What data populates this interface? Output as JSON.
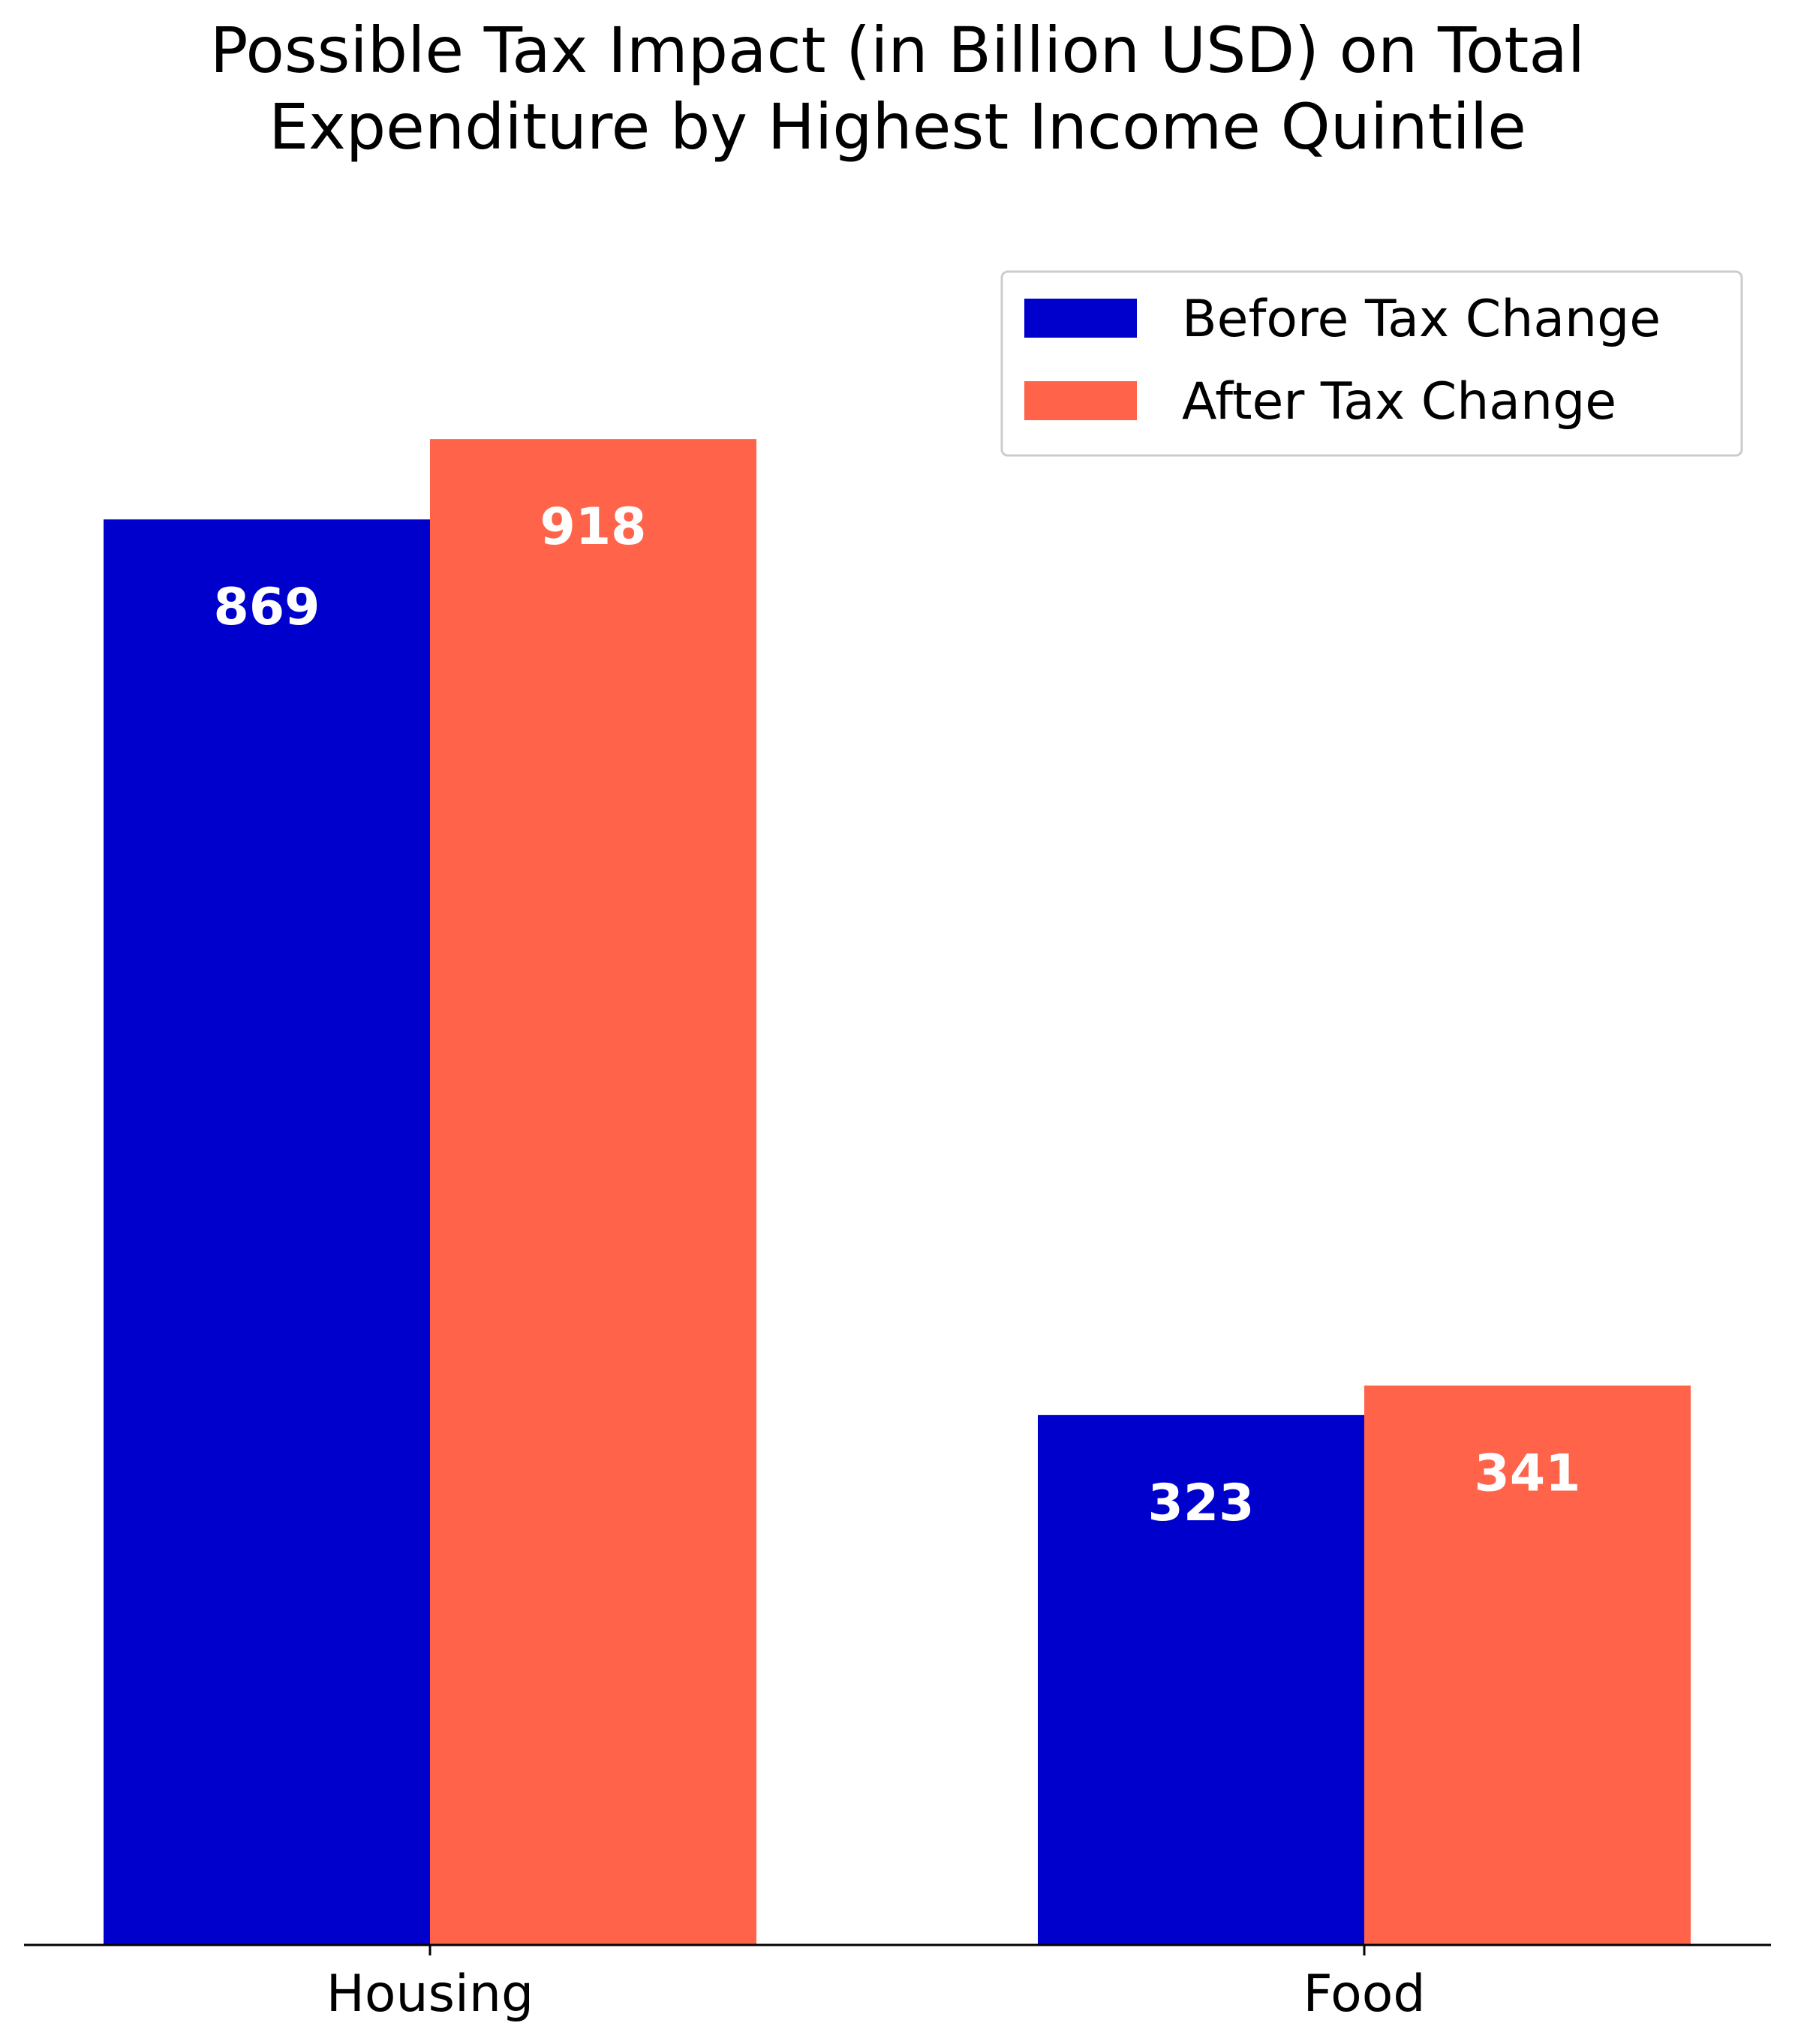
{
  "chart_data": {
    "type": "bar",
    "title": "Possible Tax Impact (in Billion USD) on Total Expenditure by Highest Income Quintile",
    "title_lines": [
      "Possible Tax Impact (in Billion USD) on Total",
      "Expenditure by Highest Income Quintile"
    ],
    "xlabel": "",
    "ylabel": "",
    "categories": [
      "Housing",
      "Food"
    ],
    "series": [
      {
        "name": "Before Tax Change",
        "color": "#0000cc",
        "values": [
          869,
          323
        ],
        "labels": [
          "869",
          "323"
        ]
      },
      {
        "name": "After Tax Change",
        "color": "#ff644b",
        "values": [
          918,
          341
        ],
        "labels": [
          "918",
          "341"
        ]
      }
    ],
    "ylim": [
      0,
      1010
    ],
    "grid": false,
    "legend_position": "top-right",
    "y_axis_visible": false
  }
}
